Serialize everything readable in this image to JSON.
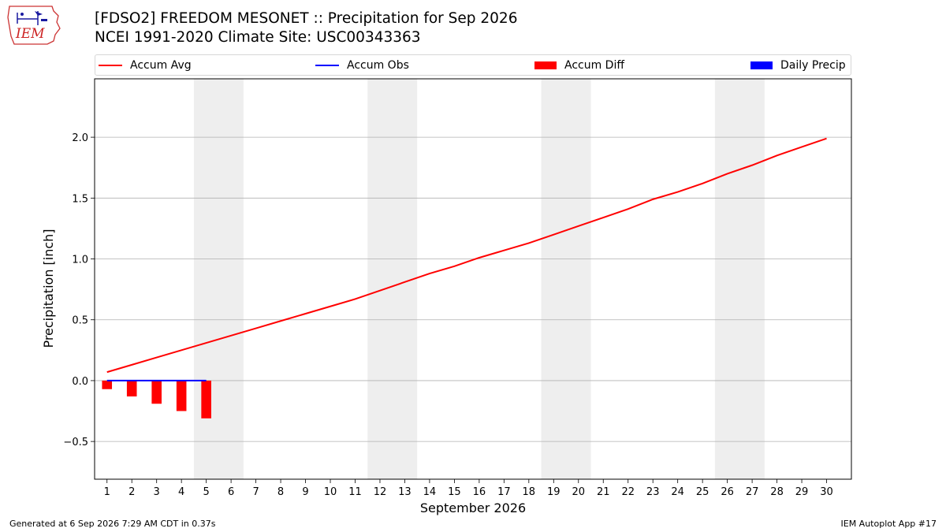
{
  "header": {
    "logo_text": "IEM",
    "title_line1": "[FDSO2] FREEDOM MESONET :: Precipitation for Sep 2026",
    "title_line2": "NCEI 1991-2020 Climate Site: USC00343363"
  },
  "legend": {
    "items": [
      {
        "label": "Accum Avg",
        "color": "#ff0000",
        "kind": "line"
      },
      {
        "label": "Accum Obs",
        "color": "#0000ff",
        "kind": "line"
      },
      {
        "label": "Accum Diff",
        "color": "#ff0000",
        "kind": "patch"
      },
      {
        "label": "Daily Precip",
        "color": "#0000ff",
        "kind": "patch"
      }
    ]
  },
  "footer": {
    "left": "Generated at 6 Sep 2026 7:29 AM CDT in 0.37s",
    "right": "IEM Autoplot App #17"
  },
  "chart_data": {
    "type": "line",
    "xlabel": "September 2026",
    "ylabel": "Precipitation [inch]",
    "xlim": [
      0.5,
      31.0
    ],
    "ylim": [
      -0.81,
      2.48
    ],
    "x_ticks": [
      1,
      2,
      3,
      4,
      5,
      6,
      7,
      8,
      9,
      10,
      11,
      12,
      13,
      14,
      15,
      16,
      17,
      18,
      19,
      20,
      21,
      22,
      23,
      24,
      25,
      26,
      27,
      28,
      29,
      30
    ],
    "y_ticks": [
      -0.5,
      0.0,
      0.5,
      1.0,
      1.5,
      2.0
    ],
    "y_tick_labels": [
      "−0.5",
      "0.0",
      "0.5",
      "1.0",
      "1.5",
      "2.0"
    ],
    "grid": "horizontal",
    "shaded_weekends": [
      [
        5,
        6
      ],
      [
        12,
        13
      ],
      [
        19,
        20
      ],
      [
        26,
        27
      ]
    ],
    "series": [
      {
        "name": "Accum Avg",
        "type": "line",
        "color": "#ff0000",
        "x": [
          1,
          2,
          3,
          4,
          5,
          6,
          7,
          8,
          9,
          10,
          11,
          12,
          13,
          14,
          15,
          16,
          17,
          18,
          19,
          20,
          21,
          22,
          23,
          24,
          25,
          26,
          27,
          28,
          29,
          30
        ],
        "values": [
          0.07,
          0.13,
          0.19,
          0.25,
          0.31,
          0.37,
          0.43,
          0.49,
          0.55,
          0.61,
          0.67,
          0.74,
          0.81,
          0.88,
          0.94,
          1.01,
          1.07,
          1.13,
          1.2,
          1.27,
          1.34,
          1.41,
          1.49,
          1.55,
          1.62,
          1.7,
          1.77,
          1.85,
          1.92,
          1.99
        ]
      },
      {
        "name": "Accum Obs",
        "type": "line",
        "color": "#0000ff",
        "x": [
          1,
          2,
          3,
          4,
          5
        ],
        "values": [
          0.0,
          0.0,
          0.0,
          0.0,
          0.0
        ]
      },
      {
        "name": "Accum Diff",
        "type": "bar",
        "color": "#ff0000",
        "x": [
          1,
          2,
          3,
          4,
          5
        ],
        "values": [
          -0.07,
          -0.13,
          -0.19,
          -0.25,
          -0.31
        ]
      },
      {
        "name": "Daily Precip",
        "type": "bar",
        "color": "#0000ff",
        "x": [
          1,
          2,
          3,
          4,
          5
        ],
        "values": [
          0.0,
          0.0,
          0.0,
          0.0,
          0.0
        ]
      }
    ]
  }
}
